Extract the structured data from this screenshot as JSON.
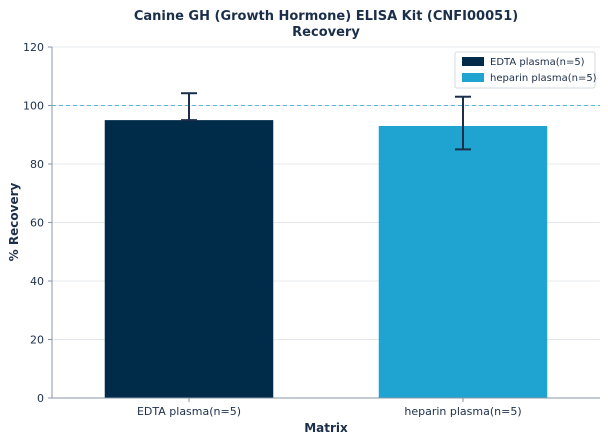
{
  "chart_data": {
    "type": "bar",
    "title_line1": "Canine GH (Growth Hormone) ELISA Kit (CNFI00051)",
    "title_line2": "Recovery",
    "xlabel": "Matrix",
    "ylabel": "% Recovery",
    "ylim": [
      0,
      120
    ],
    "yticks": [
      0,
      20,
      40,
      60,
      80,
      100,
      120
    ],
    "reference_line": 100,
    "grid": true,
    "legend_position": "top-right",
    "categories": [
      "EDTA plasma(n=5)",
      "heparin plasma(n=5)"
    ],
    "values": [
      95,
      93
    ],
    "error_high": [
      104.2,
      103
    ],
    "error_low": [
      95,
      85
    ],
    "colors": [
      "#002b49",
      "#1fa4d1"
    ],
    "legend": [
      "EDTA plasma(n=5)",
      "heparin plasma(n=5)"
    ],
    "reference_line_color": "#5bb8d6",
    "error_bar_color": "#1b2f4a"
  }
}
